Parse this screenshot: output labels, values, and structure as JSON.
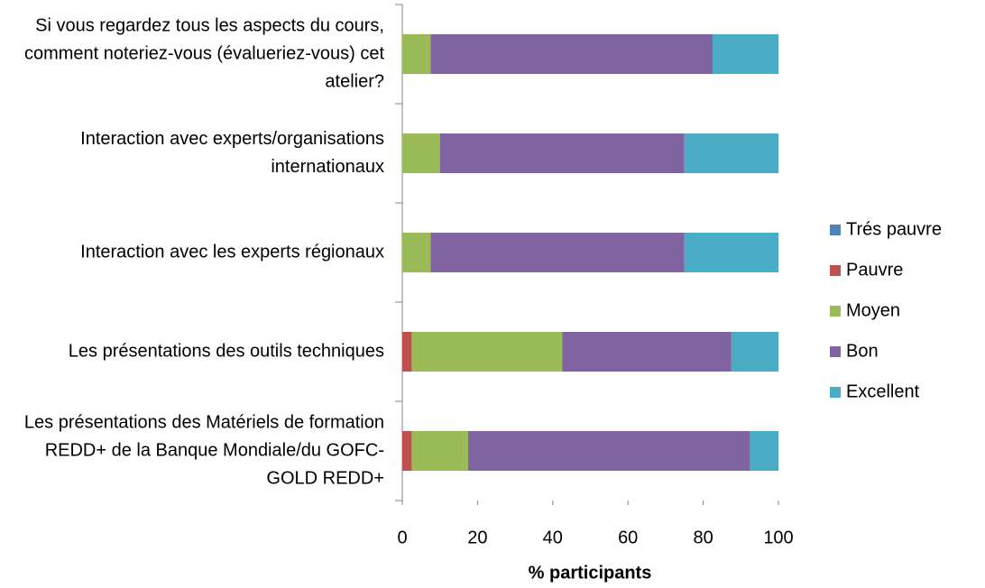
{
  "chart_data": {
    "type": "stacked_barh",
    "xlabel": "% participants",
    "categories": [
      "Si vous regardez tous les aspects du cours, comment noteriez-vous (évalueriez-vous) cet atelier?",
      "Interaction avec experts/organisations internationaux",
      "Interaction avec les experts régionaux",
      "Les présentations des outils techniques",
      "Les présentations des Matériels de formation REDD+ de la Banque Mondiale/du GOFC-GOLD REDD+"
    ],
    "series": [
      {
        "name": "Trés pauvre",
        "color": "#4f81bd",
        "values": [
          0,
          0,
          0,
          0,
          0
        ]
      },
      {
        "name": "Pauvre",
        "color": "#c0504d",
        "values": [
          0,
          0,
          0,
          2.5,
          2.5
        ]
      },
      {
        "name": "Moyen",
        "color": "#9bbb59",
        "values": [
          7.5,
          10,
          7.5,
          40,
          15
        ]
      },
      {
        "name": "Bon",
        "color": "#8064a2",
        "values": [
          75,
          65,
          67.5,
          45,
          75
        ]
      },
      {
        "name": "Excellent",
        "color": "#4bacc6",
        "values": [
          17.5,
          25,
          25,
          12.5,
          7.5
        ]
      }
    ],
    "xlim": [
      0,
      100
    ],
    "xticks": [
      0,
      20,
      40,
      60,
      80,
      100
    ],
    "legend": "right"
  }
}
